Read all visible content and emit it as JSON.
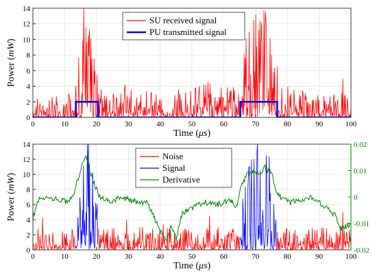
{
  "chart_data": [
    {
      "type": "line",
      "xlabel": "Time (μs)",
      "ylabel": "Power (mW)",
      "xlim": [
        0,
        100
      ],
      "ylim": [
        0,
        14
      ],
      "xticks": [
        0,
        10,
        20,
        30,
        40,
        50,
        60,
        70,
        80,
        90,
        100
      ],
      "yticks": [
        0,
        2,
        4,
        6,
        8,
        10,
        12,
        14
      ],
      "grid": true,
      "legend_position": "top-center",
      "series": [
        {
          "name": "SU received signal",
          "color": "#ff0000",
          "style": "noisy",
          "envelope": [
            [
              0,
              1.0
            ],
            [
              13,
              1.1
            ],
            [
              14,
              2.6
            ],
            [
              15,
              4.2
            ],
            [
              16,
              6.8
            ],
            [
              17,
              7.6
            ],
            [
              18,
              5.0
            ],
            [
              19,
              3.6
            ],
            [
              20.5,
              2.2
            ],
            [
              22,
              1.4
            ],
            [
              40,
              1.2
            ],
            [
              50,
              1.5
            ],
            [
              60,
              1.7
            ],
            [
              64.5,
              1.4
            ],
            [
              66,
              3.4
            ],
            [
              68,
              4.2
            ],
            [
              70,
              5.0
            ],
            [
              72,
              6.0
            ],
            [
              74,
              5.2
            ],
            [
              76,
              3.0
            ],
            [
              78,
              1.6
            ],
            [
              85,
              1.3
            ],
            [
              100,
              1.2
            ]
          ],
          "peaks": [
            [
              17.8,
              11.3
            ],
            [
              17.0,
              9.6
            ],
            [
              16.2,
              8.0
            ],
            [
              18.6,
              7.5
            ],
            [
              68.0,
              11.0
            ],
            [
              69.5,
              12.5
            ],
            [
              72.0,
              10.0
            ],
            [
              73.3,
              12.5
            ],
            [
              71.0,
              11.2
            ],
            [
              75.0,
              8.0
            ],
            [
              55.0,
              4.5
            ],
            [
              29.0,
              4.2
            ],
            [
              97.5,
              5.0
            ]
          ]
        },
        {
          "name": "PU transmitted signal",
          "color": "#0000ff",
          "style": "step",
          "x": [
            0,
            13.5,
            13.5,
            20.5,
            20.5,
            65.2,
            65.2,
            76.8,
            76.8,
            100
          ],
          "y": [
            0,
            0,
            2,
            2,
            0,
            0,
            2,
            2,
            0,
            0
          ]
        }
      ]
    },
    {
      "type": "line",
      "xlabel": "Time (μs)",
      "ylabel": "Power (mW)",
      "xlim": [
        0,
        100
      ],
      "ylim": [
        0,
        14
      ],
      "y2lim": [
        -0.02,
        0.02
      ],
      "xticks": [
        0,
        10,
        20,
        30,
        40,
        50,
        60,
        70,
        80,
        90,
        100
      ],
      "yticks": [
        0,
        2,
        4,
        6,
        8,
        10,
        12,
        14
      ],
      "y2ticks": [
        -0.02,
        -0.01,
        0,
        0.01,
        0.02
      ],
      "y2ticklabels": [
        "-0.02",
        "-0.01",
        "0",
        "0.01",
        "0.02"
      ],
      "grid": true,
      "legend_position": "top-center",
      "series": [
        {
          "name": "Noise",
          "color": "#ff0000",
          "style": "noisy",
          "envelope": [
            [
              0,
              1.1
            ],
            [
              100,
              1.1
            ]
          ],
          "gaps": [
            [
              13.5,
              20.5
            ],
            [
              65.2,
              76.8
            ]
          ],
          "peaks": [
            [
              3.0,
              4.3
            ],
            [
              29.5,
              4.0
            ],
            [
              55.5,
              4.5
            ],
            [
              97.5,
              5.0
            ],
            [
              41.0,
              3.4
            ]
          ]
        },
        {
          "name": "Signal",
          "color": "#0000ff",
          "style": "noisy",
          "ranges": [
            [
              13.5,
              20.5
            ],
            [
              65.2,
              76.8
            ]
          ],
          "envelope": [
            [
              13.5,
              2.0
            ],
            [
              15,
              4.0
            ],
            [
              16,
              6.5
            ],
            [
              17,
              7.5
            ],
            [
              18,
              5.0
            ],
            [
              19.5,
              3.0
            ],
            [
              20.5,
              2.0
            ],
            [
              65.2,
              2.5
            ],
            [
              67,
              4.0
            ],
            [
              70,
              5.2
            ],
            [
              72,
              6.0
            ],
            [
              74,
              5.0
            ],
            [
              76.8,
              3.0
            ]
          ],
          "peaks": [
            [
              17.0,
              9.8
            ],
            [
              17.8,
              11.5
            ],
            [
              69.5,
              12.0
            ],
            [
              71.5,
              10.5
            ],
            [
              73.3,
              12.5
            ],
            [
              68.0,
              11.0
            ]
          ]
        },
        {
          "name": "Derivative",
          "color": "#008000",
          "axis": "right",
          "style": "smooth",
          "x": [
            0,
            2,
            5,
            8,
            11,
            13,
            14.5,
            15.5,
            16.5,
            17.5,
            19,
            21,
            24,
            28,
            33,
            36,
            38,
            40,
            42,
            43.5,
            45,
            47,
            50,
            54,
            58,
            62,
            64,
            65.5,
            67,
            69,
            71,
            73,
            75,
            76.5,
            78,
            81,
            85,
            88,
            92,
            95,
            97,
            100
          ],
          "y": [
            -0.008,
            0.0,
            0.0,
            -0.001,
            -0.002,
            0.002,
            0.008,
            0.012,
            0.016,
            0.012,
            0.006,
            0.0,
            -0.002,
            0.0,
            -0.002,
            -0.002,
            -0.007,
            -0.013,
            -0.016,
            -0.011,
            -0.016,
            -0.006,
            -0.004,
            -0.002,
            -0.003,
            -0.001,
            -0.004,
            0.004,
            0.008,
            0.01,
            0.009,
            0.011,
            0.009,
            0.002,
            0.0,
            -0.002,
            -0.001,
            0.0,
            -0.004,
            -0.007,
            -0.012,
            -0.01
          ]
        }
      ]
    }
  ]
}
